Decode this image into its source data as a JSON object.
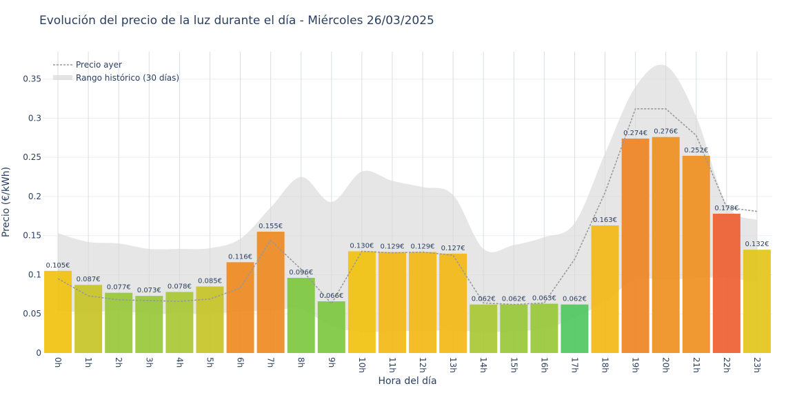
{
  "chart_data": {
    "type": "bar",
    "title": "Evolución del precio de la luz durante el día - Miércoles 26/03/2025",
    "xlabel": "Hora del día",
    "ylabel": "Precio (€/kWh)",
    "ylim": [
      0,
      0.385
    ],
    "yticks": [
      0,
      0.05,
      0.1,
      0.15,
      0.2,
      0.25,
      0.3,
      0.35
    ],
    "ytick_labels": [
      "0",
      "0.05",
      "0.1",
      "0.15",
      "0.2",
      "0.25",
      "0.3",
      "0.35"
    ],
    "grid": true,
    "categories": [
      "0h",
      "1h",
      "2h",
      "3h",
      "4h",
      "5h",
      "6h",
      "7h",
      "8h",
      "9h",
      "10h",
      "11h",
      "12h",
      "13h",
      "14h",
      "15h",
      "16h",
      "17h",
      "18h",
      "19h",
      "20h",
      "21h",
      "22h",
      "23h"
    ],
    "values": [
      0.105,
      0.087,
      0.077,
      0.073,
      0.078,
      0.085,
      0.116,
      0.155,
      0.096,
      0.066,
      0.13,
      0.129,
      0.129,
      0.127,
      0.062,
      0.062,
      0.063,
      0.062,
      0.163,
      0.274,
      0.276,
      0.252,
      0.178,
      0.132
    ],
    "value_labels": [
      "0.105€",
      "0.087€",
      "0.077€",
      "0.073€",
      "0.078€",
      "0.085€",
      "0.116€",
      "0.155€",
      "0.096€",
      "0.066€",
      "0.130€",
      "0.129€",
      "0.129€",
      "0.127€",
      "0.062€",
      "0.062€",
      "0.063€",
      "0.062€",
      "0.163€",
      "0.274€",
      "0.276€",
      "0.252€",
      "0.178€",
      "0.132€"
    ],
    "bar_colors": [
      "#f2c20f",
      "#c8c428",
      "#98c83a",
      "#98c83a",
      "#a8c834",
      "#c8c428",
      "#ee8a22",
      "#ee8a22",
      "#7ec840",
      "#7ec840",
      "#f2c20f",
      "#f2b816",
      "#f2b816",
      "#f2b816",
      "#a8c834",
      "#98c83a",
      "#98c83a",
      "#50c860",
      "#f2b816",
      "#ef8424",
      "#ef9022",
      "#ef9022",
      "#ee5e32",
      "#e2c61a"
    ],
    "yesterday": {
      "name": "Precio ayer",
      "values": [
        0.095,
        0.073,
        0.068,
        0.067,
        0.066,
        0.069,
        0.083,
        0.144,
        0.107,
        0.063,
        0.13,
        0.128,
        0.129,
        0.125,
        0.064,
        0.062,
        0.064,
        0.12,
        0.205,
        0.312,
        0.312,
        0.278,
        0.186,
        0.181
      ]
    },
    "historical_range": {
      "name": "Rango histórico (30 días)",
      "min": [
        0.054,
        0.052,
        0.054,
        0.05,
        0.051,
        0.05,
        0.053,
        0.054,
        0.056,
        0.034,
        0.027,
        0.028,
        0.028,
        0.029,
        0.027,
        0.028,
        0.031,
        0.045,
        0.066,
        0.094,
        0.093,
        0.096,
        0.096,
        0.09
      ],
      "max": [
        0.153,
        0.142,
        0.14,
        0.133,
        0.133,
        0.134,
        0.146,
        0.186,
        0.225,
        0.193,
        0.232,
        0.22,
        0.212,
        0.202,
        0.133,
        0.138,
        0.148,
        0.166,
        0.255,
        0.34,
        0.367,
        0.302,
        0.19,
        0.17
      ]
    },
    "legend_position": "top-left"
  }
}
